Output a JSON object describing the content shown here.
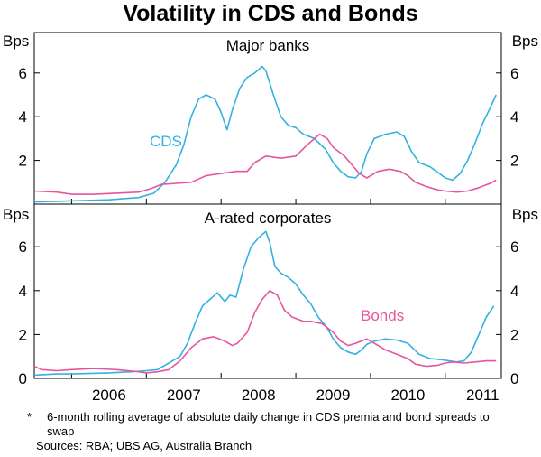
{
  "chart_data": {
    "type": "line",
    "title": "Volatility in CDS and Bonds",
    "unit_label": "Bps",
    "x_ticks": [
      "2006",
      "2007",
      "2008",
      "2009",
      "2010",
      "2011"
    ],
    "x_range": [
      2005.5,
      2011.75
    ],
    "panels": [
      {
        "title": "Major banks",
        "ylim": [
          0,
          7
        ],
        "yticks_left": [
          2,
          4,
          6
        ],
        "yticks_right": [
          2,
          4,
          6
        ],
        "annotation": "CDS",
        "series": [
          {
            "name": "CDS",
            "color": "#33b2e0",
            "points": [
              [
                2005.5,
                0.1
              ],
              [
                2006.0,
                0.15
              ],
              [
                2006.5,
                0.2
              ],
              [
                2006.9,
                0.3
              ],
              [
                2007.1,
                0.5
              ],
              [
                2007.25,
                1.0
              ],
              [
                2007.4,
                1.8
              ],
              [
                2007.5,
                2.7
              ],
              [
                2007.6,
                4.0
              ],
              [
                2007.7,
                4.8
              ],
              [
                2007.8,
                5.0
              ],
              [
                2007.92,
                4.8
              ],
              [
                2008.0,
                4.2
              ],
              [
                2008.08,
                3.4
              ],
              [
                2008.15,
                4.3
              ],
              [
                2008.25,
                5.3
              ],
              [
                2008.35,
                5.8
              ],
              [
                2008.45,
                6.0
              ],
              [
                2008.55,
                6.3
              ],
              [
                2008.6,
                6.1
              ],
              [
                2008.7,
                5.0
              ],
              [
                2008.8,
                4.0
              ],
              [
                2008.9,
                3.6
              ],
              [
                2009.0,
                3.5
              ],
              [
                2009.1,
                3.2
              ],
              [
                2009.25,
                3.0
              ],
              [
                2009.4,
                2.5
              ],
              [
                2009.5,
                1.9
              ],
              [
                2009.6,
                1.5
              ],
              [
                2009.7,
                1.25
              ],
              [
                2009.8,
                1.2
              ],
              [
                2009.88,
                1.5
              ],
              [
                2009.95,
                2.3
              ],
              [
                2010.05,
                3.0
              ],
              [
                2010.2,
                3.2
              ],
              [
                2010.35,
                3.3
              ],
              [
                2010.45,
                3.1
              ],
              [
                2010.55,
                2.4
              ],
              [
                2010.65,
                1.9
              ],
              [
                2010.8,
                1.7
              ],
              [
                2010.9,
                1.45
              ],
              [
                2011.0,
                1.2
              ],
              [
                2011.1,
                1.1
              ],
              [
                2011.2,
                1.4
              ],
              [
                2011.3,
                2.0
              ],
              [
                2011.4,
                2.8
              ],
              [
                2011.5,
                3.7
              ],
              [
                2011.6,
                4.4
              ],
              [
                2011.68,
                5.0
              ]
            ]
          },
          {
            "name": "Bonds",
            "color": "#e6559f",
            "points": [
              [
                2005.5,
                0.6
              ],
              [
                2005.8,
                0.55
              ],
              [
                2006.0,
                0.45
              ],
              [
                2006.3,
                0.45
              ],
              [
                2006.6,
                0.5
              ],
              [
                2006.9,
                0.55
              ],
              [
                2007.05,
                0.7
              ],
              [
                2007.2,
                0.9
              ],
              [
                2007.4,
                0.95
              ],
              [
                2007.6,
                1.0
              ],
              [
                2007.8,
                1.3
              ],
              [
                2008.0,
                1.4
              ],
              [
                2008.2,
                1.5
              ],
              [
                2008.35,
                1.5
              ],
              [
                2008.45,
                1.9
              ],
              [
                2008.6,
                2.2
              ],
              [
                2008.8,
                2.1
              ],
              [
                2009.0,
                2.2
              ],
              [
                2009.15,
                2.7
              ],
              [
                2009.25,
                3.0
              ],
              [
                2009.32,
                3.2
              ],
              [
                2009.42,
                3.0
              ],
              [
                2009.5,
                2.6
              ],
              [
                2009.65,
                2.2
              ],
              [
                2009.75,
                1.8
              ],
              [
                2009.85,
                1.4
              ],
              [
                2009.95,
                1.2
              ],
              [
                2010.1,
                1.5
              ],
              [
                2010.25,
                1.6
              ],
              [
                2010.4,
                1.5
              ],
              [
                2010.5,
                1.3
              ],
              [
                2010.6,
                1.0
              ],
              [
                2010.75,
                0.8
              ],
              [
                2010.9,
                0.65
              ],
              [
                2011.0,
                0.6
              ],
              [
                2011.15,
                0.55
              ],
              [
                2011.3,
                0.6
              ],
              [
                2011.45,
                0.75
              ],
              [
                2011.6,
                0.95
              ],
              [
                2011.68,
                1.1
              ]
            ]
          }
        ]
      },
      {
        "title": "A-rated corporates",
        "ylim": [
          0,
          7
        ],
        "yticks_left": [
          0,
          2,
          4,
          6
        ],
        "yticks_right": [
          0,
          2,
          4,
          6
        ],
        "annotation": "Bonds",
        "series": [
          {
            "name": "CDS",
            "color": "#33b2e0",
            "points": [
              [
                2005.5,
                0.15
              ],
              [
                2005.8,
                0.2
              ],
              [
                2006.0,
                0.2
              ],
              [
                2006.5,
                0.25
              ],
              [
                2006.8,
                0.3
              ],
              [
                2007.0,
                0.35
              ],
              [
                2007.15,
                0.4
              ],
              [
                2007.3,
                0.7
              ],
              [
                2007.45,
                1.0
              ],
              [
                2007.55,
                1.6
              ],
              [
                2007.65,
                2.5
              ],
              [
                2007.75,
                3.3
              ],
              [
                2007.85,
                3.6
              ],
              [
                2007.95,
                3.9
              ],
              [
                2008.05,
                3.5
              ],
              [
                2008.12,
                3.8
              ],
              [
                2008.2,
                3.7
              ],
              [
                2008.3,
                5.0
              ],
              [
                2008.4,
                6.0
              ],
              [
                2008.5,
                6.4
              ],
              [
                2008.6,
                6.7
              ],
              [
                2008.65,
                6.2
              ],
              [
                2008.72,
                5.1
              ],
              [
                2008.8,
                4.8
              ],
              [
                2008.9,
                4.6
              ],
              [
                2009.0,
                4.3
              ],
              [
                2009.1,
                3.8
              ],
              [
                2009.2,
                3.4
              ],
              [
                2009.3,
                2.8
              ],
              [
                2009.42,
                2.3
              ],
              [
                2009.5,
                1.8
              ],
              [
                2009.6,
                1.4
              ],
              [
                2009.7,
                1.2
              ],
              [
                2009.8,
                1.1
              ],
              [
                2009.88,
                1.3
              ],
              [
                2009.95,
                1.55
              ],
              [
                2010.05,
                1.7
              ],
              [
                2010.2,
                1.8
              ],
              [
                2010.35,
                1.75
              ],
              [
                2010.5,
                1.6
              ],
              [
                2010.65,
                1.1
              ],
              [
                2010.8,
                0.9
              ],
              [
                2010.95,
                0.85
              ],
              [
                2011.05,
                0.8
              ],
              [
                2011.15,
                0.75
              ],
              [
                2011.25,
                0.8
              ],
              [
                2011.35,
                1.2
              ],
              [
                2011.45,
                2.0
              ],
              [
                2011.55,
                2.8
              ],
              [
                2011.65,
                3.3
              ]
            ]
          },
          {
            "name": "Bonds",
            "color": "#e6559f",
            "points": [
              [
                2005.5,
                0.55
              ],
              [
                2005.6,
                0.4
              ],
              [
                2005.8,
                0.35
              ],
              [
                2006.0,
                0.4
              ],
              [
                2006.3,
                0.45
              ],
              [
                2006.6,
                0.4
              ],
              [
                2006.9,
                0.3
              ],
              [
                2007.0,
                0.25
              ],
              [
                2007.15,
                0.3
              ],
              [
                2007.3,
                0.4
              ],
              [
                2007.45,
                0.8
              ],
              [
                2007.6,
                1.4
              ],
              [
                2007.75,
                1.8
              ],
              [
                2007.9,
                1.9
              ],
              [
                2008.05,
                1.7
              ],
              [
                2008.15,
                1.5
              ],
              [
                2008.22,
                1.6
              ],
              [
                2008.35,
                2.1
              ],
              [
                2008.45,
                3.0
              ],
              [
                2008.55,
                3.6
              ],
              [
                2008.65,
                4.0
              ],
              [
                2008.75,
                3.8
              ],
              [
                2008.85,
                3.1
              ],
              [
                2008.95,
                2.8
              ],
              [
                2009.1,
                2.6
              ],
              [
                2009.2,
                2.6
              ],
              [
                2009.35,
                2.5
              ],
              [
                2009.5,
                2.1
              ],
              [
                2009.6,
                1.7
              ],
              [
                2009.7,
                1.5
              ],
              [
                2009.8,
                1.6
              ],
              [
                2009.95,
                1.8
              ],
              [
                2010.05,
                1.6
              ],
              [
                2010.2,
                1.3
              ],
              [
                2010.35,
                1.1
              ],
              [
                2010.5,
                0.9
              ],
              [
                2010.6,
                0.65
              ],
              [
                2010.75,
                0.55
              ],
              [
                2010.9,
                0.6
              ],
              [
                2011.0,
                0.7
              ],
              [
                2011.1,
                0.75
              ],
              [
                2011.25,
                0.7
              ],
              [
                2011.4,
                0.75
              ],
              [
                2011.55,
                0.8
              ],
              [
                2011.68,
                0.8
              ]
            ]
          }
        ]
      }
    ]
  },
  "footnote": {
    "marker": "*",
    "text": "6-month rolling average of absolute daily change in CDS premia and bond spreads to swap"
  },
  "sources": "Sources: RBA; UBS AG, Australia Branch"
}
